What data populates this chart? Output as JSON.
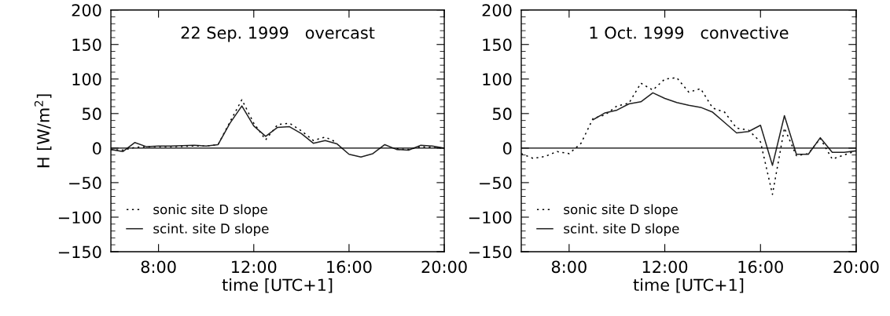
{
  "chart_data": [
    {
      "type": "line",
      "ylabel": "H [W/m$^{2}$]",
      "xlabel": "time [UTC+1]",
      "annotations": [
        "22 Sep. 1999   overcast"
      ],
      "xlim": [
        6,
        20
      ],
      "xticks": [
        {
          "value": 8,
          "label": "8:00"
        },
        {
          "value": 12,
          "label": "12:00"
        },
        {
          "value": 16,
          "label": "16:00"
        },
        {
          "value": 20,
          "label": "20:00"
        }
      ],
      "ylim": [
        -150,
        200
      ],
      "yticks": [
        -150,
        -100,
        -50,
        0,
        50,
        100,
        150,
        200
      ],
      "grid": false,
      "legend": "bottom left",
      "ref_lines": [
        {
          "axis": "y",
          "value": 0,
          "color": "#000000"
        }
      ],
      "series": [
        {
          "name": "sonic site D slope",
          "color": "#000000",
          "line_style": "dotted",
          "x": [
            6,
            6.5,
            7,
            7.5,
            8,
            8.5,
            9.5,
            10,
            10.5,
            11,
            11.5,
            12,
            12.5,
            13,
            13.5,
            14,
            14.5,
            15,
            15.5,
            16,
            16.5,
            17,
            17.5,
            18,
            18.5,
            19,
            19.5,
            20
          ],
          "values": [
            -2,
            -3,
            1,
            2,
            2,
            2,
            3,
            3,
            5,
            38,
            70,
            36,
            12,
            34,
            36,
            25,
            11,
            16,
            8,
            null,
            null,
            null,
            null,
            -1,
            -2,
            2,
            1,
            0
          ]
        },
        {
          "name": "scint. site D slope",
          "color": "#202020",
          "line_style": "solid",
          "x": [
            6,
            6.5,
            7,
            7.5,
            8,
            8.5,
            9.5,
            10,
            10.5,
            11,
            11.5,
            12,
            12.5,
            13,
            13.5,
            14,
            14.5,
            15,
            15.5,
            16,
            16.5,
            17,
            17.5,
            18,
            18.5,
            19,
            19.5,
            20
          ],
          "values": [
            -2,
            -5,
            8,
            2,
            3,
            3,
            4,
            3,
            5,
            36,
            61,
            32,
            17,
            30,
            31,
            21,
            7,
            11,
            6,
            -9,
            -13,
            -8,
            5,
            -2,
            -3,
            4,
            3,
            0
          ]
        }
      ]
    },
    {
      "type": "line",
      "xlabel": "time [UTC+1]",
      "annotations": [
        "1 Oct. 1999   convective"
      ],
      "xlim": [
        6,
        20
      ],
      "xticks": [
        {
          "value": 8,
          "label": "8:00"
        },
        {
          "value": 12,
          "label": "12:00"
        },
        {
          "value": 16,
          "label": "16:00"
        },
        {
          "value": 20,
          "label": "20:00"
        }
      ],
      "ylim": [
        -150,
        200
      ],
      "yticks": [
        -150,
        -100,
        -50,
        0,
        50,
        100,
        150,
        200
      ],
      "grid": false,
      "legend": "bottom left",
      "ref_lines": [
        {
          "axis": "y",
          "value": 0,
          "color": "#000000"
        }
      ],
      "series": [
        {
          "name": "sonic site D slope",
          "color": "#000000",
          "line_style": "dotted",
          "x": [
            6,
            6.5,
            7,
            7.5,
            8,
            8.5,
            9,
            9.5,
            10,
            10.5,
            11,
            11.5,
            12,
            12.5,
            13,
            13.5,
            14,
            14.5,
            15,
            15.5,
            16,
            16.5,
            17,
            17.5,
            18,
            18.5,
            19,
            19.5,
            20
          ],
          "values": [
            -8,
            -15,
            -12,
            -5,
            -8,
            7,
            43,
            48,
            61,
            65,
            94,
            84,
            100,
            102,
            81,
            86,
            58,
            52,
            29,
            26,
            9,
            -67,
            29,
            -11,
            -8,
            14,
            -16,
            -10,
            -4
          ]
        },
        {
          "name": "scint. site D slope",
          "color": "#202020",
          "line_style": "solid",
          "x": [
            9,
            9.5,
            10,
            10.5,
            11,
            11.5,
            12,
            12.5,
            13,
            13.5,
            14,
            14.5,
            15,
            15.5,
            16,
            16.5,
            17,
            17.5,
            18,
            18.5,
            19,
            19.5,
            20
          ],
          "values": [
            41,
            51,
            55,
            64,
            67,
            80,
            72,
            66,
            62,
            59,
            52,
            37,
            22,
            24,
            33,
            -25,
            47,
            -9,
            -9,
            15,
            -6,
            -6,
            -4
          ]
        }
      ]
    }
  ]
}
